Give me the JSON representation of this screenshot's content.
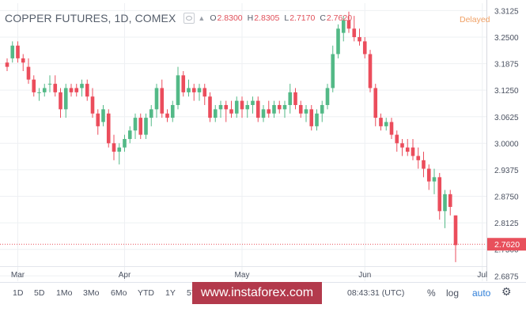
{
  "header": {
    "symbol": "COPPER FUTURES, 1D, COMEX",
    "ohlc": [
      {
        "label": "O",
        "value": "2.8300"
      },
      {
        "label": "H",
        "value": "2.8305"
      },
      {
        "label": "L",
        "value": "2.7170"
      },
      {
        "label": "C",
        "value": "2.7620"
      }
    ],
    "delayed": "Delayed"
  },
  "colors": {
    "up": "#53b987",
    "down": "#eb4d5c",
    "grid": "#eef0f3",
    "axis_text": "#4a5160",
    "price_tag": "#e8505c"
  },
  "chart_data": {
    "type": "candlestick",
    "y_ticks": [
      "3.3125",
      "3.2500",
      "3.1875",
      "3.1250",
      "3.0625",
      "3.0000",
      "2.9375",
      "2.8750",
      "2.8125",
      "2.7500",
      "2.6875"
    ],
    "ylim": [
      2.675,
      3.33
    ],
    "x_ticks": [
      "Mar",
      "Apr",
      "May",
      "Jun",
      "Jul"
    ],
    "x_tick_positions": [
      2,
      22,
      44,
      67,
      89
    ],
    "last_price": 2.762,
    "last_price_label": "2.7620",
    "candles": [
      [
        3.19,
        3.2,
        3.17,
        3.18
      ],
      [
        3.2,
        3.24,
        3.19,
        3.23
      ],
      [
        3.23,
        3.24,
        3.19,
        3.2
      ],
      [
        3.2,
        3.21,
        3.17,
        3.19
      ],
      [
        3.18,
        3.2,
        3.14,
        3.15
      ],
      [
        3.15,
        3.16,
        3.11,
        3.12
      ],
      [
        3.12,
        3.13,
        3.1,
        3.12
      ],
      [
        3.12,
        3.14,
        3.11,
        3.13
      ],
      [
        3.14,
        3.16,
        3.12,
        3.14
      ],
      [
        3.14,
        3.16,
        3.11,
        3.12
      ],
      [
        3.12,
        3.13,
        3.06,
        3.08
      ],
      [
        3.08,
        3.14,
        3.06,
        3.13
      ],
      [
        3.13,
        3.14,
        3.11,
        3.12
      ],
      [
        3.13,
        3.14,
        3.11,
        3.12
      ],
      [
        3.13,
        3.15,
        3.11,
        3.14
      ],
      [
        3.14,
        3.15,
        3.1,
        3.11
      ],
      [
        3.11,
        3.13,
        3.06,
        3.07
      ],
      [
        3.07,
        3.08,
        3.02,
        3.04
      ],
      [
        3.05,
        3.09,
        3.04,
        3.08
      ],
      [
        3.07,
        3.08,
        2.99,
        3.0
      ],
      [
        3.0,
        3.02,
        2.96,
        2.98
      ],
      [
        2.98,
        3.0,
        2.95,
        2.99
      ],
      [
        2.99,
        3.02,
        2.98,
        3.01
      ],
      [
        3.01,
        3.04,
        3.0,
        3.03
      ],
      [
        3.03,
        3.07,
        3.01,
        3.06
      ],
      [
        3.06,
        3.07,
        3.01,
        3.02
      ],
      [
        3.02,
        3.07,
        3.01,
        3.06
      ],
      [
        3.06,
        3.09,
        3.04,
        3.08
      ],
      [
        3.08,
        3.14,
        3.06,
        3.13
      ],
      [
        3.13,
        3.15,
        3.06,
        3.07
      ],
      [
        3.07,
        3.08,
        3.05,
        3.06
      ],
      [
        3.06,
        3.1,
        3.05,
        3.09
      ],
      [
        3.09,
        3.18,
        3.08,
        3.16
      ],
      [
        3.16,
        3.17,
        3.11,
        3.12
      ],
      [
        3.12,
        3.15,
        3.11,
        3.13
      ],
      [
        3.13,
        3.14,
        3.1,
        3.12
      ],
      [
        3.12,
        3.14,
        3.1,
        3.13
      ],
      [
        3.13,
        3.14,
        3.09,
        3.11
      ],
      [
        3.11,
        3.12,
        3.05,
        3.06
      ],
      [
        3.06,
        3.09,
        3.05,
        3.08
      ],
      [
        3.08,
        3.1,
        3.06,
        3.09
      ],
      [
        3.09,
        3.1,
        3.05,
        3.08
      ],
      [
        3.08,
        3.1,
        3.06,
        3.07
      ],
      [
        3.07,
        3.11,
        3.06,
        3.1
      ],
      [
        3.1,
        3.11,
        3.06,
        3.08
      ],
      [
        3.08,
        3.1,
        3.06,
        3.09
      ],
      [
        3.09,
        3.11,
        3.07,
        3.1
      ],
      [
        3.1,
        3.11,
        3.05,
        3.06
      ],
      [
        3.06,
        3.09,
        3.05,
        3.08
      ],
      [
        3.08,
        3.1,
        3.06,
        3.07
      ],
      [
        3.07,
        3.1,
        3.06,
        3.09
      ],
      [
        3.09,
        3.1,
        3.07,
        3.08
      ],
      [
        3.08,
        3.1,
        3.06,
        3.09
      ],
      [
        3.09,
        3.14,
        3.07,
        3.12
      ],
      [
        3.12,
        3.13,
        3.08,
        3.09
      ],
      [
        3.09,
        3.1,
        3.06,
        3.07
      ],
      [
        3.07,
        3.09,
        3.05,
        3.08
      ],
      [
        3.08,
        3.09,
        3.03,
        3.04
      ],
      [
        3.04,
        3.08,
        3.03,
        3.07
      ],
      [
        3.07,
        3.1,
        3.05,
        3.09
      ],
      [
        3.09,
        3.14,
        3.08,
        3.13
      ],
      [
        3.13,
        3.23,
        3.12,
        3.21
      ],
      [
        3.21,
        3.28,
        3.2,
        3.27
      ],
      [
        3.26,
        3.3,
        3.24,
        3.29
      ],
      [
        3.29,
        3.31,
        3.26,
        3.27
      ],
      [
        3.27,
        3.3,
        3.24,
        3.25
      ],
      [
        3.25,
        3.27,
        3.23,
        3.24
      ],
      [
        3.24,
        3.25,
        3.2,
        3.21
      ],
      [
        3.21,
        3.22,
        3.12,
        3.13
      ],
      [
        3.13,
        3.14,
        3.04,
        3.06
      ],
      [
        3.06,
        3.07,
        3.03,
        3.04
      ],
      [
        3.04,
        3.06,
        3.03,
        3.05
      ],
      [
        3.05,
        3.06,
        3.01,
        3.02
      ],
      [
        3.02,
        3.03,
        2.98,
        3.0
      ],
      [
        3.0,
        3.01,
        2.97,
        2.99
      ],
      [
        2.99,
        3.01,
        2.97,
        2.98
      ],
      [
        2.99,
        3.01,
        2.96,
        2.97
      ],
      [
        2.97,
        2.99,
        2.94,
        2.96
      ],
      [
        2.96,
        2.98,
        2.92,
        2.94
      ],
      [
        2.94,
        2.95,
        2.89,
        2.91
      ],
      [
        2.91,
        2.94,
        2.88,
        2.92
      ],
      [
        2.92,
        2.93,
        2.82,
        2.84
      ],
      [
        2.84,
        2.89,
        2.8,
        2.88
      ],
      [
        2.88,
        2.89,
        2.83,
        2.85
      ],
      [
        2.83,
        2.83,
        2.72,
        2.76
      ]
    ]
  },
  "toolbar": {
    "timeframes": [
      "1D",
      "5D",
      "1Mo",
      "3Mo",
      "6Mo",
      "YTD",
      "1Y",
      "5Y"
    ],
    "time": "08:43:31 (UTC)",
    "percent": "%",
    "log": "log",
    "auto": "auto"
  },
  "watermark": "www.instaforex.com"
}
